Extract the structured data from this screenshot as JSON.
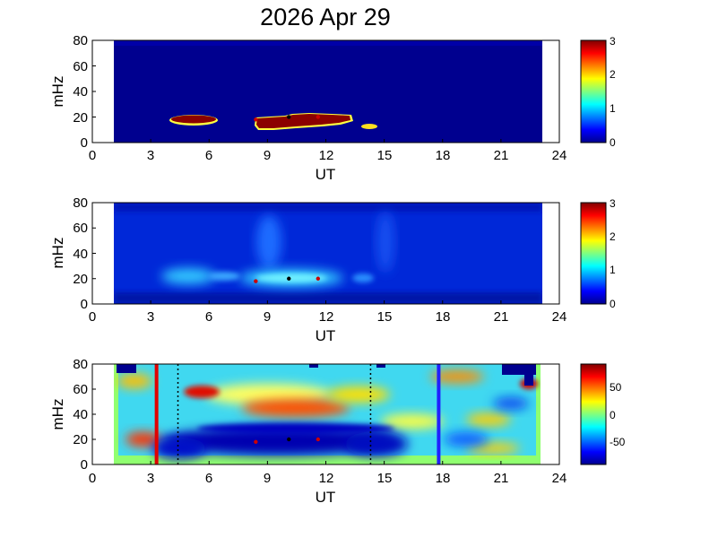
{
  "figure": {
    "title": "2026 Apr 29"
  },
  "chart_data": [
    {
      "type": "heatmap",
      "xlabel": "UT",
      "ylabel": "mHz",
      "xlim": [
        0,
        24
      ],
      "ylim": [
        0,
        80
      ],
      "xticks": [
        "0",
        "3",
        "6",
        "9",
        "12",
        "15",
        "18",
        "21",
        "24"
      ],
      "yticks": [
        "0",
        "20",
        "40",
        "60",
        "80"
      ],
      "colorbar": {
        "clim": [
          0,
          3
        ],
        "ticks": [
          "0",
          "1",
          "2",
          "3"
        ]
      },
      "data_extent_ut": [
        1.0,
        23.0
      ],
      "grid": false
    },
    {
      "type": "heatmap",
      "xlabel": "UT",
      "ylabel": "mHz",
      "xlim": [
        0,
        24
      ],
      "ylim": [
        0,
        80
      ],
      "xticks": [
        "0",
        "3",
        "6",
        "9",
        "12",
        "15",
        "18",
        "21",
        "24"
      ],
      "yticks": [
        "0",
        "20",
        "40",
        "60",
        "80"
      ],
      "colorbar": {
        "clim": [
          0,
          3
        ],
        "ticks": [
          "0",
          "1",
          "2",
          "3"
        ]
      },
      "data_extent_ut": [
        1.0,
        23.0
      ],
      "grid": false
    },
    {
      "type": "heatmap",
      "xlabel": "UT",
      "ylabel": "mHz",
      "xlim": [
        0,
        24
      ],
      "ylim": [
        0,
        80
      ],
      "xticks": [
        "0",
        "3",
        "6",
        "9",
        "12",
        "15",
        "18",
        "21",
        "24"
      ],
      "yticks": [
        "0",
        "20",
        "40",
        "60",
        "80"
      ],
      "colorbar": {
        "clim": [
          -85,
          85
        ],
        "ticks": [
          "50",
          "0",
          "-50"
        ]
      },
      "data_extent_ut": [
        1.0,
        23.0
      ],
      "vertical_lines_ut": [
        {
          "ut": 3.3,
          "color": "#e00000"
        },
        {
          "ut": 17.8,
          "color": "#2020ff"
        }
      ],
      "dotted_lines_ut": [
        4.4,
        14.3
      ],
      "grid": false
    }
  ],
  "markers": [
    {
      "ut": 8.4,
      "mhz": 18,
      "color": "#cc0000"
    },
    {
      "ut": 10.1,
      "mhz": 20,
      "color": "#000000"
    },
    {
      "ut": 11.6,
      "mhz": 20,
      "color": "#cc0000"
    }
  ]
}
